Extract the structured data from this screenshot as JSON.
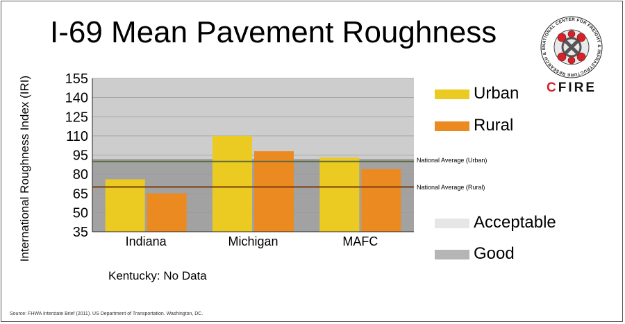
{
  "title": "I-69 Mean Pavement Roughness",
  "ylabel": "International Roughness Index (IRI)",
  "note": "Kentucky: No Data",
  "source": "Source: FHWA Interstate Brief (2011). US Department of Transportation. Washington, DC.",
  "logo": {
    "ring_text": "NATIONAL CENTER FOR FREIGHT & INFRASTRUCTURE RESEARCH & EDUCATION",
    "name": "CFIRE"
  },
  "colors": {
    "urban": "#ebcb22",
    "rural": "#ec8a22",
    "acceptable": "#e6e6e6",
    "good": "#b5b5b5",
    "plot_upper": "#cdcdcd",
    "plot_lower": "#a2a2a2",
    "ref_urban": "#5a6a42",
    "ref_rural": "#7a3a12",
    "logo_red": "#d2232a"
  },
  "chart_data": {
    "type": "bar",
    "categories": [
      "Indiana",
      "Michigan",
      "MAFC"
    ],
    "series": [
      {
        "name": "Urban",
        "values": [
          76,
          110,
          93
        ]
      },
      {
        "name": "Rural",
        "values": [
          65,
          98,
          84
        ]
      }
    ],
    "ylim": [
      35,
      155
    ],
    "yticks": [
      35,
      50,
      65,
      80,
      95,
      110,
      125,
      140,
      155
    ],
    "reference_lines": [
      {
        "label": "National Average (Urban)",
        "value": 90
      },
      {
        "label": "National Average (Rural)",
        "value": 70
      }
    ],
    "background_bands": [
      {
        "name": "Acceptable",
        "from": 92,
        "to": 155
      },
      {
        "name": "Good",
        "from": 35,
        "to": 92
      }
    ],
    "legend": {
      "position": "right",
      "entries": [
        "Urban",
        "Rural",
        "Acceptable",
        "Good"
      ]
    },
    "grid": true
  }
}
